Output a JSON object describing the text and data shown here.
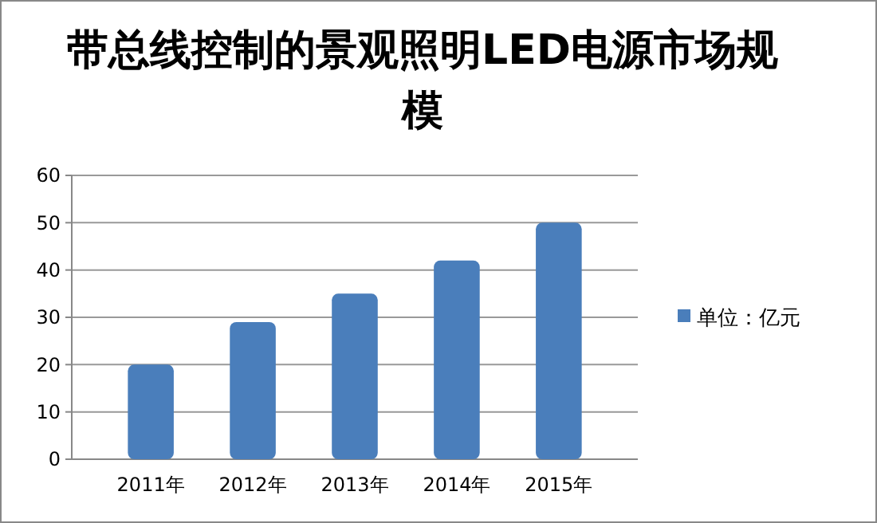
{
  "chart_data": {
    "type": "bar",
    "title": "带总线控制的景观照明LED电源市场规模",
    "categories": [
      "2011年",
      "2012年",
      "2013年",
      "2014年",
      "2015年"
    ],
    "series": [
      {
        "name": "单位：亿元",
        "color": "#4a7ebb",
        "values": [
          20,
          29,
          35,
          42,
          50
        ]
      }
    ],
    "ylim": [
      0,
      60
    ],
    "yticks": [
      0,
      10,
      20,
      30,
      40,
      50,
      60
    ],
    "grid": "y",
    "legend": "right"
  }
}
